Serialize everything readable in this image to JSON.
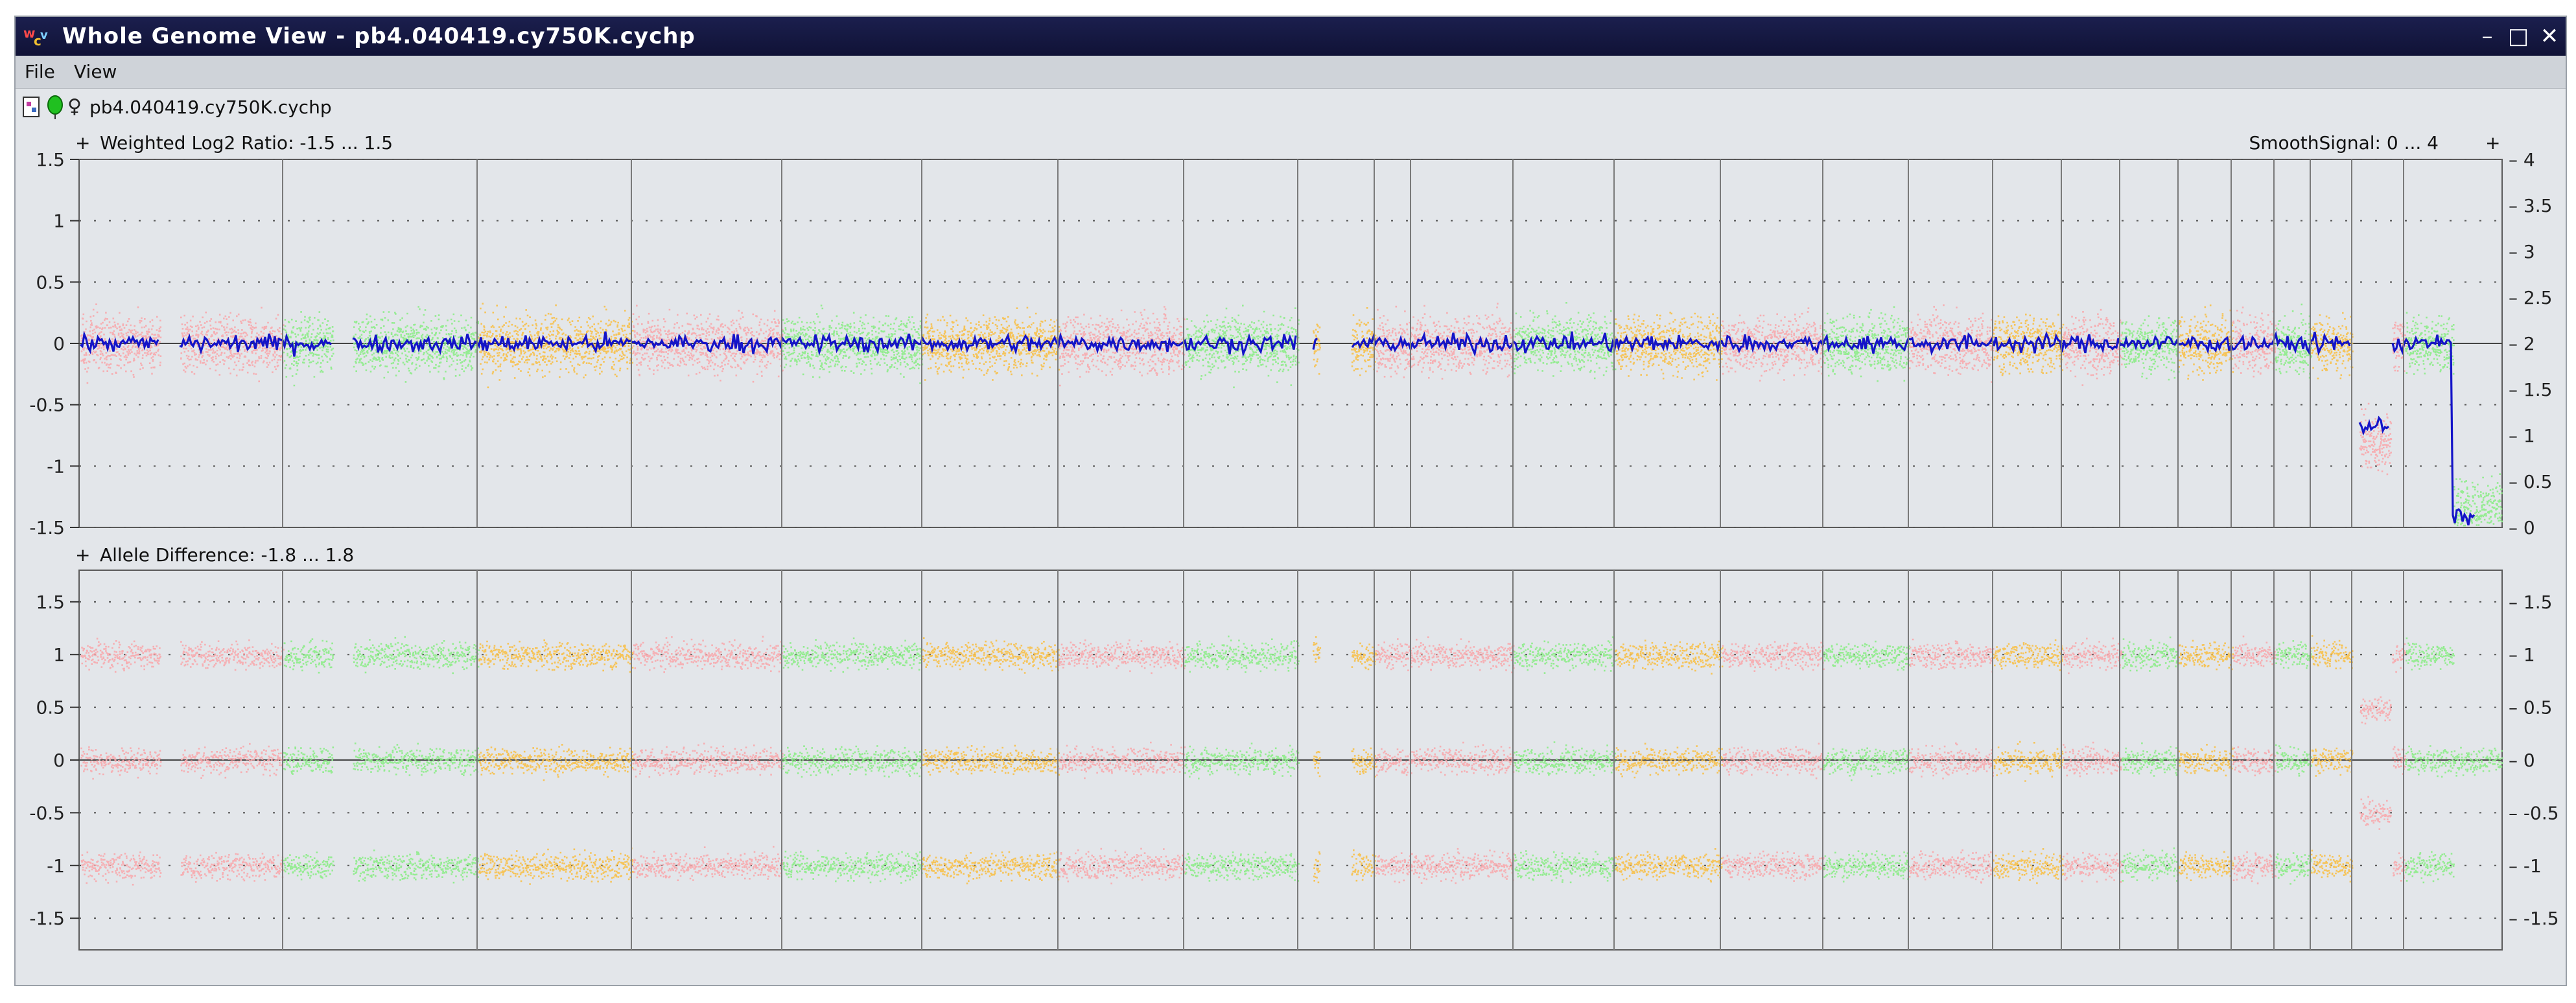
{
  "window": {
    "title": "Whole Genome View - pb4.040419.cy750K.cychp",
    "controls": {
      "minimize": "–",
      "maximize": "□",
      "close": "✕"
    }
  },
  "menu": {
    "items": [
      "File",
      "View"
    ]
  },
  "toolbar": {
    "file_label": "pb4.040419.cy750K.cychp",
    "sex_symbol": "♀"
  },
  "icons": [
    "app-icon",
    "document-icon",
    "green-marker-icon",
    "female-symbol-icon",
    "plus-icon"
  ],
  "colors": {
    "pink": "#f7a8ad",
    "green": "#8cec88",
    "orange": "#f7c049",
    "smooth": "#1414c8"
  },
  "panels": {
    "top": {
      "left_label": "Weighted Log2 Ratio: -1.5 ... 1.5",
      "right_label": "SmoothSignal: 0 ... 4",
      "left_ticks": [
        "1.5",
        "1",
        "0.5",
        "0",
        "-0.5",
        "-1",
        "-1.5"
      ],
      "right_ticks": [
        "4",
        "3.5",
        "3",
        "2.5",
        "2",
        "1.5",
        "1",
        "0.5",
        "0"
      ]
    },
    "bottom": {
      "left_label": "Allele Difference: -1.8 ... 1.8",
      "ticks": [
        "1.5",
        "1",
        "0.5",
        "0",
        "-0.5",
        "-1",
        "-1.5"
      ]
    }
  },
  "chart_data": [
    {
      "type": "scatter",
      "title": "Weighted Log2 Ratio: -1.5 ... 1.5",
      "y2label": "SmoothSignal: 0 ... 4",
      "ylim": [
        -1.5,
        1.5
      ],
      "y2lim": [
        0,
        4
      ],
      "grid": true,
      "chromosome_panels": 24,
      "series": [
        {
          "name": "",
          "values_approx": "log2 ratio near 0 in all panels; panel 23 drops to about -0.8 over its first half, then returns near 0; panel 24 about -1.4"
        },
        {
          "name": "",
          "values_approx": "SmoothSignal about 2 in all panels; about 1.1 in first half of panel 23; about 0.1 in panel 24"
        }
      ]
    },
    {
      "type": "scatter",
      "title": "Allele Difference: -1.8 ... 1.8",
      "ylim": [
        -1.8,
        1.8
      ],
      "grid": true,
      "chromosome_panels": 24,
      "bands": [
        1,
        0,
        -1
      ],
      "exception": "panel 23 first half: bands at 0.5 and -0.5"
    }
  ]
}
